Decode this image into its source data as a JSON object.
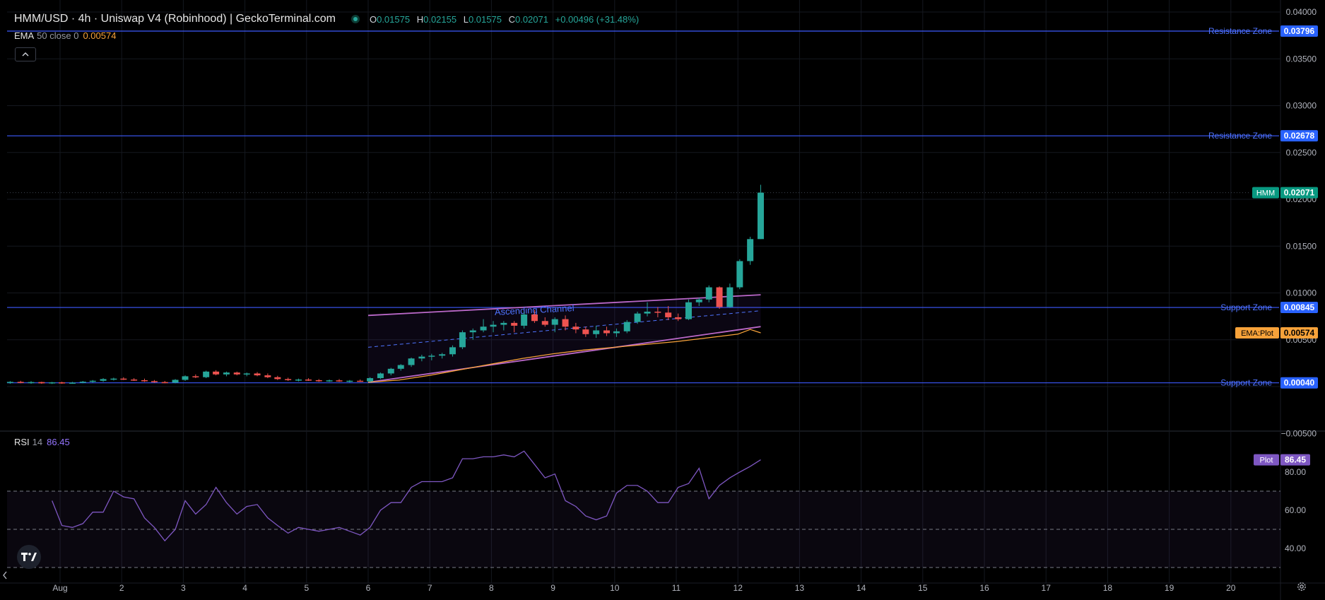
{
  "header": {
    "title": "HMM/USD · 4h · Uniswap V4 (Robinhood) | GeckoTerminal.com",
    "ohlc": {
      "o_label": "O",
      "o": "0.01575",
      "h_label": "H",
      "h": "0.02155",
      "l_label": "L",
      "l": "0.01575",
      "c_label": "C",
      "c": "0.02071",
      "change": "+0.00496 (+31.48%)"
    }
  },
  "ema_legend": {
    "name": "EMA",
    "params": "50 close 0",
    "value": "0.00574"
  },
  "rsi_legend": {
    "name": "RSI",
    "params": "14",
    "value": "86.45"
  },
  "icons": {
    "collapse": "chevron-up-icon",
    "logo": "tradingview-logo-icon",
    "settings": "gear-icon",
    "scroll": "chevron-left-icon"
  },
  "colors": {
    "up": "#26a69a",
    "down": "#ef5350",
    "ema": "#f7a23a",
    "rsi": "#7e57c2",
    "zone_line": "#3d5afe",
    "zone_label_bg": "#2962ff",
    "channel": "#ba68c8",
    "price_tag": "#089981"
  },
  "chart_data": [
    {
      "type": "candlestick",
      "ylim": [
        -0.005,
        0.04
      ],
      "y_ticks": [
        "0.04000",
        "0.03500",
        "0.03000",
        "0.02500",
        "0.02000",
        "0.01500",
        "0.01000",
        "0.00500",
        "−0.00500"
      ],
      "x_ticks": [
        {
          "x": 0,
          "label": "Aug"
        },
        {
          "x": 1,
          "label": "2"
        },
        {
          "x": 2,
          "label": "3"
        },
        {
          "x": 3,
          "label": "4"
        },
        {
          "x": 4,
          "label": "5"
        },
        {
          "x": 5,
          "label": "6"
        },
        {
          "x": 6,
          "label": "7"
        },
        {
          "x": 7,
          "label": "8"
        },
        {
          "x": 8,
          "label": "9"
        },
        {
          "x": 9,
          "label": "10"
        },
        {
          "x": 10,
          "label": "11"
        },
        {
          "x": 11,
          "label": "12"
        },
        {
          "x": 12,
          "label": "13"
        },
        {
          "x": 13,
          "label": "14"
        },
        {
          "x": 14,
          "label": "15"
        },
        {
          "x": 15,
          "label": "16"
        },
        {
          "x": 16,
          "label": "17"
        },
        {
          "x": 17,
          "label": "18"
        },
        {
          "x": 18,
          "label": "19"
        },
        {
          "x": 19,
          "label": "20"
        }
      ],
      "xlim": [
        -0.83,
        19.9
      ],
      "candles": [
        {
          "x": -0.81,
          "o": 0.0004,
          "h": 0.00058,
          "l": 0.0003,
          "c": 0.0005
        },
        {
          "x": -0.64,
          "o": 0.0005,
          "h": 0.00062,
          "l": 0.00035,
          "c": 0.0004
        },
        {
          "x": -0.47,
          "o": 0.0004,
          "h": 0.00058,
          "l": 0.0003,
          "c": 0.00048
        },
        {
          "x": -0.3,
          "o": 0.00048,
          "h": 0.00052,
          "l": 0.0003,
          "c": 0.00035
        },
        {
          "x": -0.13,
          "o": 0.00035,
          "h": 0.0005,
          "l": 0.00028,
          "c": 0.00045
        },
        {
          "x": 0.03,
          "o": 0.00045,
          "h": 0.00052,
          "l": 0.0003,
          "c": 0.00038
        },
        {
          "x": 0.2,
          "o": 0.00038,
          "h": 0.0005,
          "l": 0.0003,
          "c": 0.00042
        },
        {
          "x": 0.37,
          "o": 0.00042,
          "h": 0.0006,
          "l": 0.00035,
          "c": 0.00052
        },
        {
          "x": 0.53,
          "o": 0.00052,
          "h": 0.0007,
          "l": 0.0004,
          "c": 0.00062
        },
        {
          "x": 0.7,
          "o": 0.00062,
          "h": 0.0009,
          "l": 0.0005,
          "c": 0.0008
        },
        {
          "x": 0.87,
          "o": 0.0008,
          "h": 0.00095,
          "l": 0.00065,
          "c": 0.00085
        },
        {
          "x": 1.03,
          "o": 0.00085,
          "h": 0.001,
          "l": 0.0007,
          "c": 0.00075
        },
        {
          "x": 1.2,
          "o": 0.00075,
          "h": 0.0009,
          "l": 0.0006,
          "c": 0.00068
        },
        {
          "x": 1.37,
          "o": 0.00068,
          "h": 0.00085,
          "l": 0.0005,
          "c": 0.00058
        },
        {
          "x": 1.53,
          "o": 0.00058,
          "h": 0.0007,
          "l": 0.0004,
          "c": 0.00048
        },
        {
          "x": 1.7,
          "o": 0.00048,
          "h": 0.0006,
          "l": 0.00035,
          "c": 0.00042
        },
        {
          "x": 1.87,
          "o": 0.00042,
          "h": 0.0008,
          "l": 0.00035,
          "c": 0.00072
        },
        {
          "x": 2.03,
          "o": 0.00072,
          "h": 0.0012,
          "l": 0.0006,
          "c": 0.0011
        },
        {
          "x": 2.2,
          "o": 0.0011,
          "h": 0.0013,
          "l": 0.0009,
          "c": 0.001
        },
        {
          "x": 2.37,
          "o": 0.001,
          "h": 0.0017,
          "l": 0.0009,
          "c": 0.0016
        },
        {
          "x": 2.53,
          "o": 0.0016,
          "h": 0.00175,
          "l": 0.0012,
          "c": 0.0013
        },
        {
          "x": 2.7,
          "o": 0.0013,
          "h": 0.0016,
          "l": 0.0011,
          "c": 0.0015
        },
        {
          "x": 2.87,
          "o": 0.0015,
          "h": 0.0016,
          "l": 0.0012,
          "c": 0.0013
        },
        {
          "x": 3.03,
          "o": 0.0013,
          "h": 0.0015,
          "l": 0.0011,
          "c": 0.0014
        },
        {
          "x": 3.2,
          "o": 0.0014,
          "h": 0.00155,
          "l": 0.0011,
          "c": 0.0012
        },
        {
          "x": 3.37,
          "o": 0.0012,
          "h": 0.0014,
          "l": 0.0009,
          "c": 0.001
        },
        {
          "x": 3.53,
          "o": 0.001,
          "h": 0.00115,
          "l": 0.0007,
          "c": 0.0008
        },
        {
          "x": 3.7,
          "o": 0.0008,
          "h": 0.00095,
          "l": 0.0006,
          "c": 0.0007
        },
        {
          "x": 3.87,
          "o": 0.0007,
          "h": 0.00085,
          "l": 0.00055,
          "c": 0.00075
        },
        {
          "x": 4.03,
          "o": 0.00075,
          "h": 0.0009,
          "l": 0.0006,
          "c": 0.00068
        },
        {
          "x": 4.2,
          "o": 0.00068,
          "h": 0.0008,
          "l": 0.0005,
          "c": 0.0006
        },
        {
          "x": 4.37,
          "o": 0.0006,
          "h": 0.00075,
          "l": 0.0005,
          "c": 0.00066
        },
        {
          "x": 4.53,
          "o": 0.00066,
          "h": 0.0008,
          "l": 0.0005,
          "c": 0.00058
        },
        {
          "x": 4.7,
          "o": 0.00058,
          "h": 0.0007,
          "l": 0.00045,
          "c": 0.00062
        },
        {
          "x": 4.87,
          "o": 0.00062,
          "h": 0.00075,
          "l": 0.0005,
          "c": 0.00055
        },
        {
          "x": 5.03,
          "o": 0.00055,
          "h": 0.001,
          "l": 0.00045,
          "c": 0.0009
        },
        {
          "x": 5.2,
          "o": 0.0009,
          "h": 0.0015,
          "l": 0.0008,
          "c": 0.0014
        },
        {
          "x": 5.37,
          "o": 0.0014,
          "h": 0.002,
          "l": 0.0012,
          "c": 0.0019
        },
        {
          "x": 5.53,
          "o": 0.0019,
          "h": 0.0024,
          "l": 0.0017,
          "c": 0.0023
        },
        {
          "x": 5.7,
          "o": 0.0023,
          "h": 0.0031,
          "l": 0.0021,
          "c": 0.003
        },
        {
          "x": 5.87,
          "o": 0.003,
          "h": 0.0034,
          "l": 0.0027,
          "c": 0.0032
        },
        {
          "x": 6.03,
          "o": 0.0032,
          "h": 0.0035,
          "l": 0.0028,
          "c": 0.0033
        },
        {
          "x": 6.2,
          "o": 0.0033,
          "h": 0.0036,
          "l": 0.003,
          "c": 0.00345
        },
        {
          "x": 6.37,
          "o": 0.00345,
          "h": 0.0044,
          "l": 0.0032,
          "c": 0.0042
        },
        {
          "x": 6.53,
          "o": 0.0042,
          "h": 0.006,
          "l": 0.004,
          "c": 0.0058
        },
        {
          "x": 6.7,
          "o": 0.0058,
          "h": 0.0062,
          "l": 0.005,
          "c": 0.006
        },
        {
          "x": 6.87,
          "o": 0.006,
          "h": 0.0072,
          "l": 0.0058,
          "c": 0.0064
        },
        {
          "x": 7.03,
          "o": 0.0064,
          "h": 0.007,
          "l": 0.0058,
          "c": 0.0066
        },
        {
          "x": 7.2,
          "o": 0.0066,
          "h": 0.007,
          "l": 0.006,
          "c": 0.0068
        },
        {
          "x": 7.37,
          "o": 0.0068,
          "h": 0.007,
          "l": 0.0058,
          "c": 0.0065
        },
        {
          "x": 7.53,
          "o": 0.0065,
          "h": 0.008,
          "l": 0.0062,
          "c": 0.0077
        },
        {
          "x": 7.7,
          "o": 0.0077,
          "h": 0.0082,
          "l": 0.0068,
          "c": 0.007
        },
        {
          "x": 7.87,
          "o": 0.007,
          "h": 0.0074,
          "l": 0.0064,
          "c": 0.0066
        },
        {
          "x": 8.03,
          "o": 0.0066,
          "h": 0.0074,
          "l": 0.0058,
          "c": 0.0072
        },
        {
          "x": 8.2,
          "o": 0.0072,
          "h": 0.0076,
          "l": 0.006,
          "c": 0.0064
        },
        {
          "x": 8.37,
          "o": 0.0064,
          "h": 0.0068,
          "l": 0.0057,
          "c": 0.0061
        },
        {
          "x": 8.53,
          "o": 0.0061,
          "h": 0.0064,
          "l": 0.0053,
          "c": 0.0056
        },
        {
          "x": 8.7,
          "o": 0.0056,
          "h": 0.0065,
          "l": 0.0052,
          "c": 0.006
        },
        {
          "x": 8.87,
          "o": 0.006,
          "h": 0.0064,
          "l": 0.0054,
          "c": 0.0057
        },
        {
          "x": 9.03,
          "o": 0.0057,
          "h": 0.0062,
          "l": 0.0053,
          "c": 0.0059
        },
        {
          "x": 9.2,
          "o": 0.0059,
          "h": 0.0071,
          "l": 0.0057,
          "c": 0.0069
        },
        {
          "x": 9.37,
          "o": 0.0069,
          "h": 0.008,
          "l": 0.0067,
          "c": 0.0078
        },
        {
          "x": 9.53,
          "o": 0.0078,
          "h": 0.009,
          "l": 0.0075,
          "c": 0.008
        },
        {
          "x": 9.7,
          "o": 0.008,
          "h": 0.0085,
          "l": 0.0074,
          "c": 0.0079
        },
        {
          "x": 9.87,
          "o": 0.0079,
          "h": 0.0086,
          "l": 0.0071,
          "c": 0.0074
        },
        {
          "x": 10.03,
          "o": 0.0074,
          "h": 0.0078,
          "l": 0.007,
          "c": 0.0072
        },
        {
          "x": 10.2,
          "o": 0.0072,
          "h": 0.0093,
          "l": 0.0071,
          "c": 0.009
        },
        {
          "x": 10.37,
          "o": 0.009,
          "h": 0.0095,
          "l": 0.0086,
          "c": 0.0093
        },
        {
          "x": 10.53,
          "o": 0.0093,
          "h": 0.0108,
          "l": 0.009,
          "c": 0.0106
        },
        {
          "x": 10.7,
          "o": 0.0106,
          "h": 0.0107,
          "l": 0.0083,
          "c": 0.0085
        },
        {
          "x": 10.87,
          "o": 0.0085,
          "h": 0.011,
          "l": 0.0084,
          "c": 0.0106
        },
        {
          "x": 11.03,
          "o": 0.0106,
          "h": 0.0136,
          "l": 0.0104,
          "c": 0.0134
        },
        {
          "x": 11.2,
          "o": 0.0134,
          "h": 0.016,
          "l": 0.013,
          "c": 0.01575
        },
        {
          "x": 11.37,
          "o": 0.01575,
          "h": 0.02155,
          "l": 0.01575,
          "c": 0.02071
        }
      ],
      "ema": [
        [
          5.0,
          0.00045
        ],
        [
          5.5,
          0.0007
        ],
        [
          6.0,
          0.0012
        ],
        [
          6.5,
          0.0018
        ],
        [
          7.0,
          0.0024
        ],
        [
          7.5,
          0.003
        ],
        [
          8.0,
          0.0035
        ],
        [
          8.5,
          0.0039
        ],
        [
          9.0,
          0.0042
        ],
        [
          9.5,
          0.0045
        ],
        [
          10.0,
          0.0048
        ],
        [
          10.5,
          0.0052
        ],
        [
          11.0,
          0.0056
        ],
        [
          11.2,
          0.0061
        ],
        [
          11.37,
          0.00574
        ]
      ],
      "channel": {
        "label": "Ascending Channel",
        "upper": [
          [
            5.0,
            0.0076
          ],
          [
            11.37,
            0.0098
          ]
        ],
        "mid": [
          [
            5.0,
            0.0042
          ],
          [
            11.37,
            0.0081
          ]
        ],
        "lower": [
          [
            5.0,
            0.00045
          ],
          [
            11.37,
            0.0064
          ]
        ]
      },
      "zones": [
        {
          "label": "Resistance Zone",
          "value": 0.03796,
          "value_label": "0.03796"
        },
        {
          "label": "Resistance Zone",
          "value": 0.02678,
          "value_label": "0.02678"
        },
        {
          "label": "Support Zone",
          "value": 0.00845,
          "value_label": "0.00845"
        },
        {
          "label": "Support Zone",
          "value": 0.0004,
          "value_label": "0.00040"
        }
      ],
      "price_tag": {
        "symbol": "HMM",
        "value": 0.02071,
        "value_label": "0.02071"
      },
      "ema_tag": {
        "label": "EMA:Plot",
        "value": 0.00574,
        "value_label": "0.00574"
      }
    },
    {
      "type": "line",
      "name": "RSI",
      "ylim": [
        27,
        100
      ],
      "y_ticks": [
        "80.00",
        "60.00",
        "40.00"
      ],
      "bands": {
        "upper": 70,
        "mid": 50,
        "lower": 30
      },
      "tag": {
        "label": "Plot",
        "value": 86.45,
        "value_label": "86.45"
      },
      "x": [
        -0.13,
        0.03,
        0.2,
        0.37,
        0.53,
        0.7,
        0.87,
        1.03,
        1.2,
        1.37,
        1.53,
        1.7,
        1.87,
        2.03,
        2.2,
        2.37,
        2.53,
        2.7,
        2.87,
        3.03,
        3.2,
        3.37,
        3.53,
        3.7,
        3.87,
        4.03,
        4.2,
        4.37,
        4.53,
        4.7,
        4.87,
        5.03,
        5.2,
        5.37,
        5.53,
        5.7,
        5.87,
        6.03,
        6.2,
        6.37,
        6.53,
        6.7,
        6.87,
        7.03,
        7.2,
        7.37,
        7.53,
        7.7,
        7.87,
        8.03,
        8.2,
        8.37,
        8.53,
        8.7,
        8.87,
        9.03,
        9.2,
        9.37,
        9.53,
        9.7,
        9.87,
        10.03,
        10.2,
        10.37,
        10.53,
        10.7,
        10.87,
        11.03,
        11.2,
        11.37
      ],
      "values": [
        65,
        52,
        51,
        53,
        59,
        59,
        70,
        67,
        66,
        56,
        51,
        44,
        50,
        65,
        58,
        63,
        72,
        64,
        58,
        62,
        63,
        56,
        52,
        48,
        51,
        50,
        49,
        50,
        51,
        49,
        47,
        51,
        60,
        64,
        64,
        72,
        75,
        75,
        75,
        77,
        87,
        87,
        88,
        88,
        89,
        88,
        91,
        84,
        77,
        79,
        65,
        62,
        57,
        55,
        57,
        69,
        73,
        73,
        70,
        64,
        64,
        72,
        74,
        82,
        66,
        73,
        77,
        80,
        83,
        86.45
      ]
    }
  ]
}
